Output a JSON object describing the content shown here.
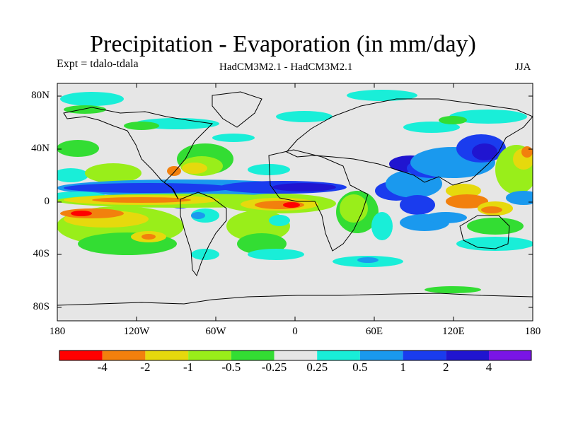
{
  "title": "Precipitation - Evaporation (in mm/day)",
  "experiment": "Expt = tdalo-tdala",
  "model": "HadCM3M2.1 - HadCM3M2.1",
  "season": "JJA",
  "lat_ticks": [
    "80N",
    "40N",
    "0",
    "40S",
    "80S"
  ],
  "lon_ticks": [
    "180",
    "120W",
    "60W",
    "0",
    "60E",
    "120E",
    "180"
  ],
  "colorbar": {
    "labels": [
      "-4",
      "-2",
      "-1",
      "-0.5",
      "-0.25",
      "0.25",
      "0.5",
      "1",
      "2",
      "4"
    ],
    "colors": [
      "#ff0000",
      "#f2800d",
      "#e6d90d",
      "#99ee1a",
      "#33dd33",
      "#e6e6e6",
      "#19eed8",
      "#1a99ee",
      "#1a3cee",
      "#2015d0",
      "#7a15e6"
    ]
  },
  "palette": {
    "neutral": "#e6e6e6",
    "red": "#ff0000",
    "orange": "#f2800d",
    "yellow": "#e6d90d",
    "yellowgreen": "#99ee1a",
    "green": "#33dd33",
    "cyan": "#19eed8",
    "lightblue": "#1a99ee",
    "blue": "#1a3cee",
    "darkblue": "#2015d0",
    "purple": "#7a15e6"
  }
}
